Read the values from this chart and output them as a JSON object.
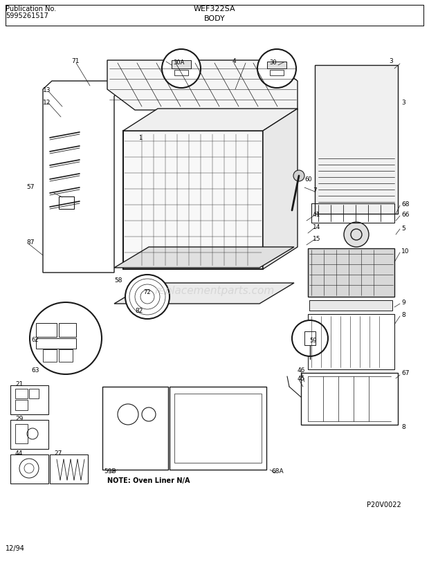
{
  "title_left_line1": "Publication No.",
  "title_left_line2": "5995261517",
  "title_center_top": "WEF322SA",
  "title_center_bottom": "BODY",
  "bottom_left": "12/94",
  "bottom_right": "P20V0022",
  "note_text": "NOTE: Oven Liner N/A",
  "bg_color": "#ffffff",
  "line_color": "#1a1a1a",
  "text_color": "#000000",
  "diagram_color": "#2a2a2a",
  "watermark_color": "#c8c8c8"
}
